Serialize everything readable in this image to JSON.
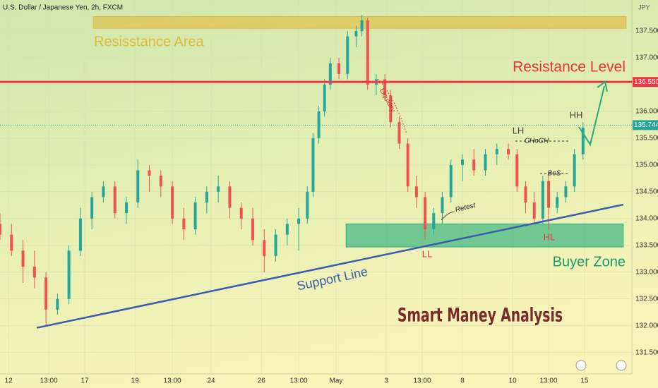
{
  "chart_data": {
    "type": "candlestick",
    "title": "U.S. Dollar / Japanese Yen, 2h, FXCM",
    "y_axis_label": "JPY",
    "x": [
      0,
      4,
      8,
      12,
      16,
      20,
      24,
      28,
      32,
      36,
      40,
      44,
      48,
      52,
      56,
      60,
      64,
      68,
      72,
      76,
      80,
      84,
      88,
      92,
      96,
      100,
      104,
      107,
      109,
      111,
      113,
      115,
      118,
      121,
      124,
      126,
      128,
      131,
      134,
      136,
      139,
      142,
      145,
      148,
      151,
      154,
      157,
      161,
      165,
      169,
      173,
      177,
      180,
      183,
      186,
      189,
      191,
      194,
      197,
      200,
      203
    ],
    "open": [
      133.9,
      133.7,
      133.4,
      133.1,
      132.9,
      132.3,
      132.5,
      133.4,
      134.0,
      134.4,
      134.6,
      134.1,
      134.3,
      134.9,
      134.8,
      134.6,
      134.0,
      133.8,
      134.3,
      134.5,
      134.6,
      134.2,
      134.0,
      133.6,
      133.3,
      133.7,
      133.9,
      134.0,
      134.5,
      135.5,
      136.0,
      136.5,
      136.9,
      136.7,
      137.4,
      137.5,
      137.7,
      136.5,
      136.6,
      136.3,
      135.8,
      135.4,
      134.6,
      134.4,
      133.8,
      134.1,
      134.4,
      135.0,
      135.1,
      134.9,
      135.2,
      135.3,
      135.2,
      134.6,
      134.3,
      134.0,
      134.7,
      134.2,
      134.4,
      134.6,
      135.2
    ],
    "high": [
      134.1,
      133.9,
      133.6,
      133.4,
      133.0,
      132.6,
      133.5,
      134.2,
      134.5,
      134.7,
      134.7,
      134.4,
      135.1,
      135.0,
      134.9,
      134.7,
      134.2,
      134.4,
      134.6,
      134.8,
      134.7,
      134.3,
      134.2,
      133.8,
      133.8,
      134.0,
      134.2,
      134.6,
      135.6,
      136.1,
      136.6,
      137.0,
      137.0,
      137.5,
      137.6,
      137.8,
      137.75,
      136.7,
      136.7,
      136.4,
      135.9,
      135.5,
      134.8,
      134.5,
      134.2,
      134.5,
      135.1,
      135.2,
      135.3,
      135.3,
      135.4,
      135.4,
      135.3,
      134.7,
      134.5,
      134.8,
      134.8,
      134.5,
      134.7,
      135.3,
      135.8
    ],
    "low": [
      133.6,
      133.3,
      132.8,
      132.7,
      132.0,
      132.2,
      132.4,
      133.3,
      133.8,
      134.3,
      134.0,
      133.9,
      134.2,
      134.5,
      134.4,
      133.9,
      133.6,
      133.7,
      134.1,
      134.3,
      134.0,
      133.8,
      133.5,
      133.0,
      133.2,
      133.5,
      133.4,
      133.9,
      134.4,
      135.4,
      135.9,
      136.4,
      136.6,
      136.6,
      137.2,
      137.4,
      136.4,
      136.3,
      136.2,
      135.7,
      135.3,
      134.5,
      134.2,
      133.6,
      133.7,
      133.9,
      134.3,
      134.7,
      134.8,
      134.8,
      135.0,
      135.1,
      134.5,
      134.1,
      133.9,
      133.9,
      133.8,
      134.1,
      134.3,
      134.5,
      135.1
    ],
    "close": [
      133.7,
      133.4,
      133.1,
      132.9,
      132.3,
      132.5,
      133.4,
      134.0,
      134.4,
      134.6,
      134.1,
      134.3,
      134.9,
      134.8,
      134.6,
      134.0,
      133.8,
      134.3,
      134.5,
      134.6,
      134.2,
      134.0,
      133.6,
      133.3,
      133.7,
      133.9,
      134.0,
      134.5,
      135.5,
      136.0,
      136.5,
      136.9,
      136.7,
      137.4,
      137.5,
      137.7,
      136.5,
      136.6,
      136.3,
      135.8,
      135.4,
      134.6,
      134.4,
      133.8,
      134.1,
      134.4,
      135.0,
      135.1,
      134.9,
      135.2,
      135.3,
      135.2,
      134.6,
      134.3,
      134.0,
      134.7,
      134.2,
      134.4,
      134.6,
      135.2,
      135.7
    ],
    "up_color": "#26a69a",
    "down_color": "#ef5350",
    "xlim": [
      0,
      220
    ],
    "xticks": [
      {
        "value": 3,
        "label": "12"
      },
      {
        "value": 17,
        "label": "13:00"
      },
      {
        "value": 29.5,
        "label": "17"
      },
      {
        "value": 47,
        "label": "19"
      },
      {
        "value": 60,
        "label": "13:00"
      },
      {
        "value": 73.5,
        "label": "24"
      },
      {
        "value": 91,
        "label": "26"
      },
      {
        "value": 104,
        "label": "13:00"
      },
      {
        "value": 117,
        "label": "May"
      },
      {
        "value": 134.5,
        "label": "3"
      },
      {
        "value": 147,
        "label": "13:00"
      },
      {
        "value": 161,
        "label": "8"
      },
      {
        "value": 178.5,
        "label": "10"
      },
      {
        "value": 191,
        "label": "13:00"
      },
      {
        "value": 203.5,
        "label": "15"
      }
    ],
    "ylim": [
      131.1,
      138.08
    ],
    "yticks": [
      {
        "value": 131.5,
        "label": "131.500"
      },
      {
        "value": 132,
        "label": "132.000"
      },
      {
        "value": 132.5,
        "label": "132.500"
      },
      {
        "value": 133,
        "label": "133.000"
      },
      {
        "value": 133.5,
        "label": "133.500"
      },
      {
        "value": 134,
        "label": "134.000"
      },
      {
        "value": 134.5,
        "label": "134.500"
      },
      {
        "value": 135,
        "label": "135.000"
      },
      {
        "value": 135.5,
        "label": "135.500"
      },
      {
        "value": 136,
        "label": "136.000"
      },
      {
        "value": 137,
        "label": "137.000"
      },
      {
        "value": 137.5,
        "label": "137.500"
      }
    ],
    "grid": true,
    "levels": [
      {
        "value": 136.55,
        "value_label": "136.550",
        "color": "#f23645",
        "width": 3
      },
      {
        "value": 135.744,
        "value_label": "135.744",
        "color": "#26a69a",
        "width": 1
      }
    ],
    "zones": [
      {
        "label": "Resisstance Area",
        "low": 137.55,
        "high": 137.77,
        "x": [
          32.5,
          218
        ],
        "color": "#e3b93a"
      },
      {
        "label": "Buyer Zone",
        "low": 133.47,
        "high": 133.9,
        "x": [
          120.5,
          217
        ],
        "color": "#1fae7a"
      }
    ],
    "trendline": {
      "label": "Support Line",
      "x": [
        12.8,
        217
      ],
      "y": [
        131.96,
        134.26
      ],
      "color": "#3a5cad"
    },
    "annotations": {
      "resistance_level": "Resistance Level",
      "liquidity": "Liquidity",
      "lh": "LH",
      "choch": "CHoCH",
      "hh": "HH",
      "bos": "BoS",
      "retest": "Retest",
      "ll": "LL",
      "hl": "HL",
      "headline": "Smart Maney Analysis"
    }
  }
}
